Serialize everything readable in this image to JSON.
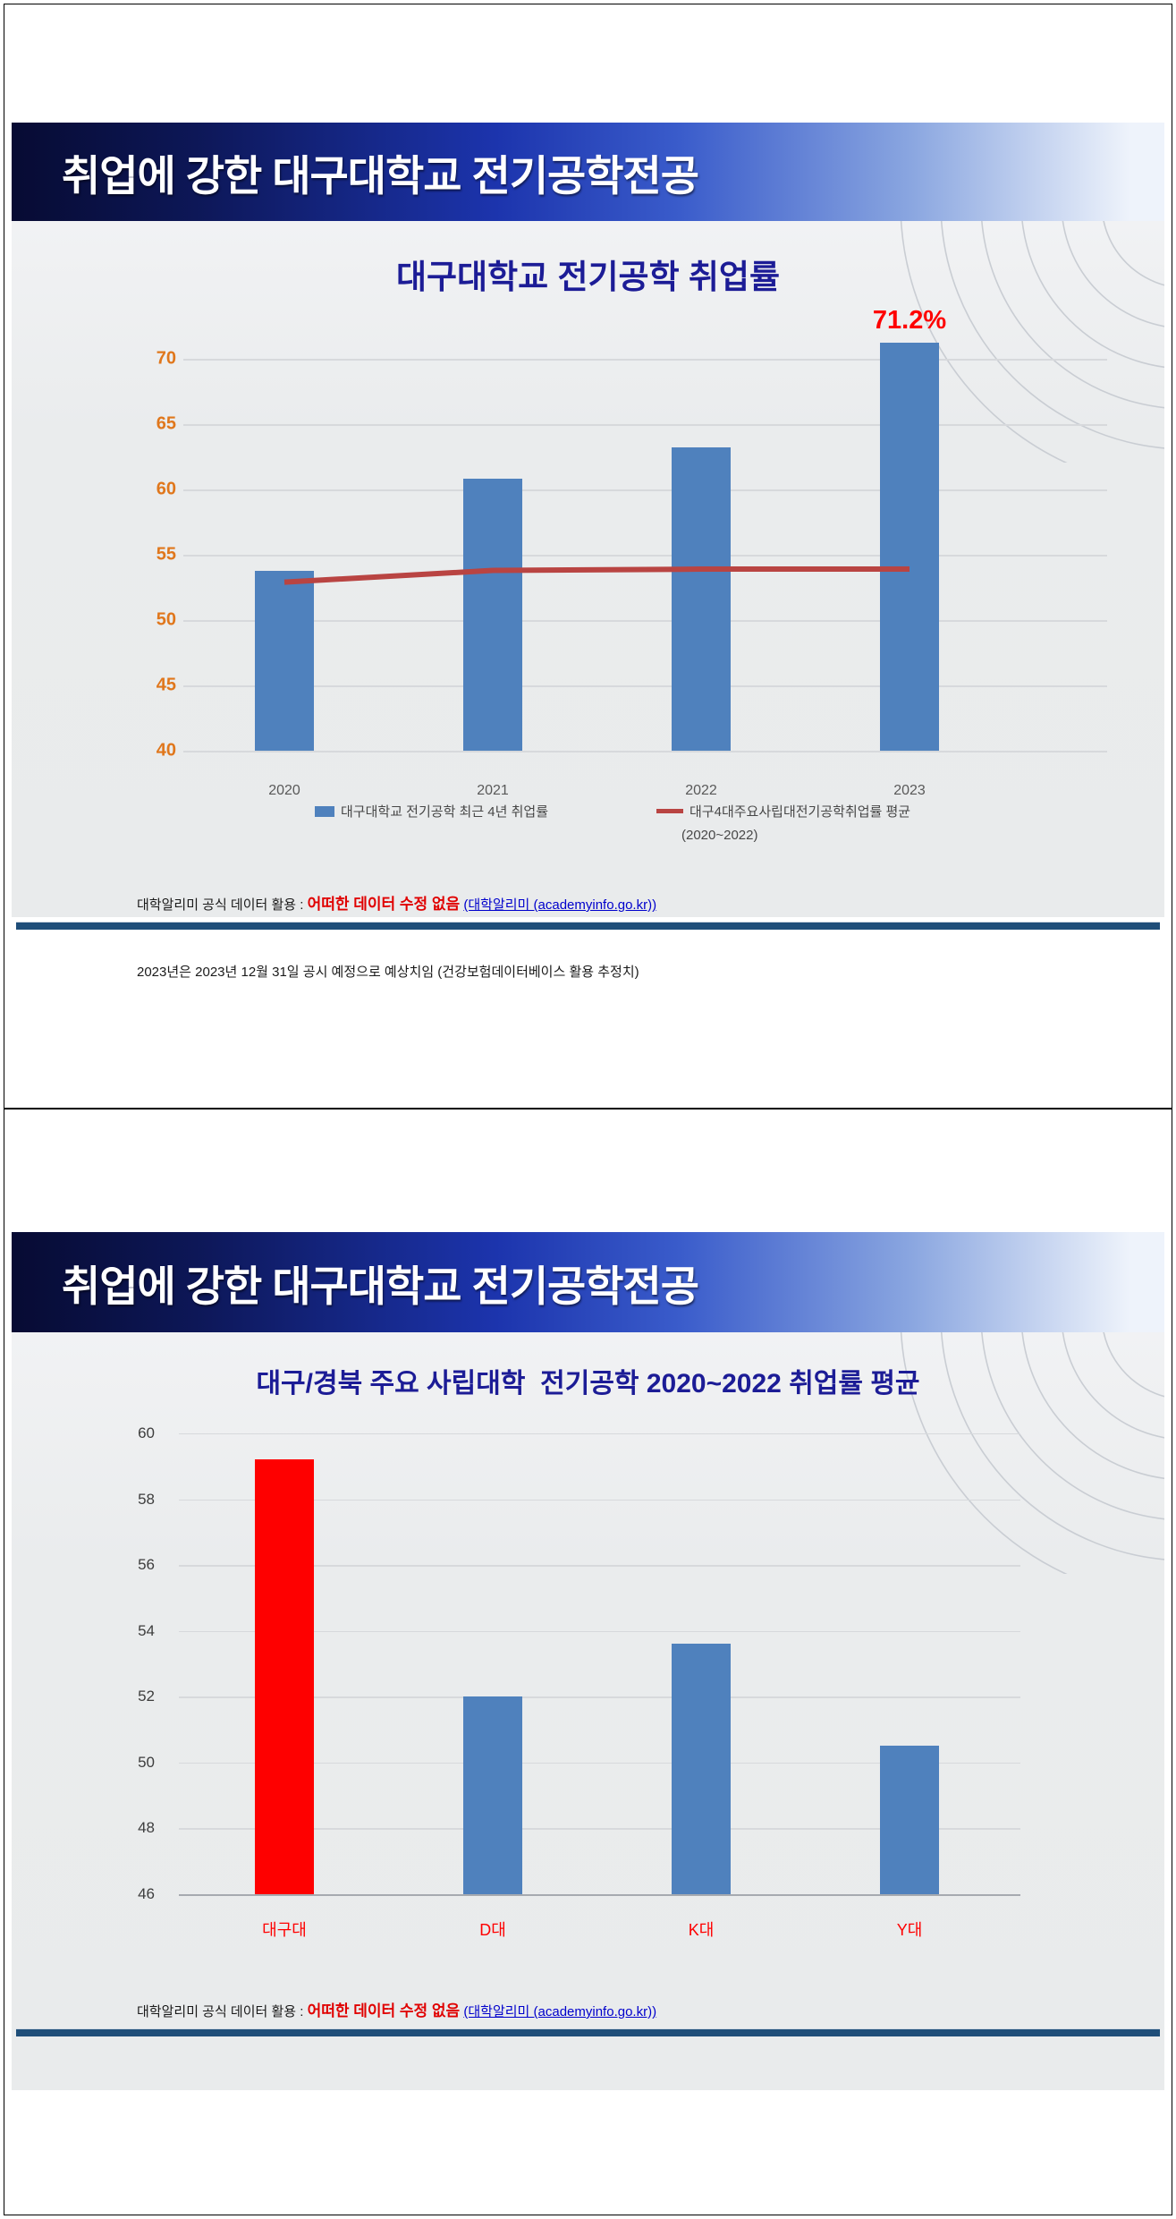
{
  "theme": {
    "banner_gradient_start": "#070b33",
    "banner_gradient_mid": "#1c34ad",
    "banner_gradient_end": "#eef3fb",
    "banner_text_color": "#ffffff",
    "chart_title_color": "#1c1c96",
    "underline_bar_color": "#1f4e79",
    "footnote_highlight_color": "#e00000",
    "footnote_link_color": "#0000cc"
  },
  "slide1": {
    "banner_title": "취업에 강한 대구대학교 전기공학전공",
    "chart_title": "대구대학교 전기공학 취업률",
    "legend": {
      "bar_series": "대구대학교 전기공학 최근 4년 취업률",
      "line_series": "대구4대주요사립대전기공학취업률 평균",
      "line_series_note": "(2020~2022)"
    },
    "footnote": {
      "prefix": "대학알리미 공식 데이터 활용 : ",
      "highlight": "어떠한 데이터 수정 없음",
      "link": "(대학알리미 (academyinfo.go.kr))",
      "line2": "2023년은 2023년 12월 31일 공시 예정으로 예상치임 (건강보험데이터베이스 활용 추정치)"
    }
  },
  "slide2": {
    "banner_title": "취업에 강한 대구대학교 전기공학전공",
    "chart_title": "대구/경북 주요 사립대학  전기공학 2020~2022 취업률 평균",
    "footnote": {
      "prefix": "대학알리미 공식 데이터 활용 : ",
      "highlight": "어떠한 데이터 수정 없음",
      "link": "(대학알리미 (academyinfo.go.kr))"
    }
  },
  "chart_data": [
    {
      "type": "bar",
      "title": "대구대학교 전기공학 취업률",
      "categories": [
        "2020",
        "2021",
        "2022",
        "2023"
      ],
      "series": [
        {
          "name": "대구대학교 전기공학 최근 4년 취업률",
          "type": "bar",
          "values": [
            53.8,
            60.8,
            63.2,
            71.2
          ],
          "color": "#4f81bd"
        },
        {
          "name": "대구4대주요사립대전기공학취업률 평균 (2020~2022)",
          "type": "line",
          "values": [
            52.9,
            53.8,
            53.9,
            53.9
          ],
          "color": "#b94442"
        }
      ],
      "ylim": [
        40,
        72
      ],
      "yticks": [
        40,
        45,
        50,
        55,
        60,
        65,
        70
      ],
      "ytick_color": "#e0771c",
      "xtick_color": "#595959",
      "grid": true,
      "legend_position": "bottom",
      "annotations": [
        {
          "category": "2023",
          "text": "71.2%",
          "color": "#fe0000"
        }
      ]
    },
    {
      "type": "bar",
      "title": "대구/경북 주요 사립대학  전기공학 2020~2022 취업률 평균",
      "categories": [
        "대구대",
        "D대",
        "K대",
        "Y대"
      ],
      "values": [
        59.2,
        52.0,
        53.6,
        50.5
      ],
      "bar_colors": [
        "#fe0000",
        "#4f81bd",
        "#4f81bd",
        "#4f81bd"
      ],
      "ylim": [
        46,
        60
      ],
      "yticks": [
        46,
        48,
        50,
        52,
        54,
        56,
        58,
        60
      ],
      "ytick_color": "#3d3d3d",
      "xtick_color": "#fe0000",
      "grid": true,
      "legend_position": "none"
    }
  ]
}
